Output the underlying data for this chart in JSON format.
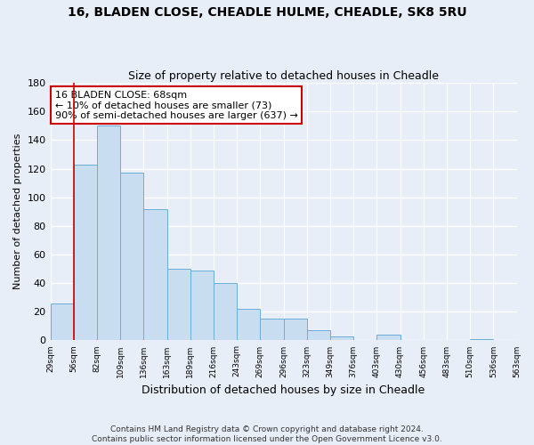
{
  "title1": "16, BLADEN CLOSE, CHEADLE HULME, CHEADLE, SK8 5RU",
  "title2": "Size of property relative to detached houses in Cheadle",
  "xlabel": "Distribution of detached houses by size in Cheadle",
  "ylabel": "Number of detached properties",
  "bar_values": [
    26,
    123,
    150,
    117,
    92,
    50,
    49,
    40,
    22,
    15,
    15,
    7,
    3,
    0,
    4,
    0,
    0,
    0,
    1,
    0
  ],
  "bar_labels": [
    "29sqm",
    "56sqm",
    "82sqm",
    "109sqm",
    "136sqm",
    "163sqm",
    "189sqm",
    "216sqm",
    "243sqm",
    "269sqm",
    "296sqm",
    "323sqm",
    "349sqm",
    "376sqm",
    "403sqm",
    "430sqm",
    "456sqm",
    "483sqm",
    "510sqm",
    "536sqm",
    "563sqm"
  ],
  "bar_color": "#c8ddf0",
  "bar_edge_color": "#6aaed6",
  "vline_x": 1,
  "vline_color": "#cc0000",
  "annotation_title": "16 BLADEN CLOSE: 68sqm",
  "annotation_line1": "← 10% of detached houses are smaller (73)",
  "annotation_line2": "90% of semi-detached houses are larger (637) →",
  "annotation_box_color": "#ffffff",
  "annotation_box_edge": "#cc0000",
  "ylim": [
    0,
    180
  ],
  "yticks": [
    0,
    20,
    40,
    60,
    80,
    100,
    120,
    140,
    160,
    180
  ],
  "footer1": "Contains HM Land Registry data © Crown copyright and database right 2024.",
  "footer2": "Contains public sector information licensed under the Open Government Licence v3.0.",
  "bg_color": "#e8eef8"
}
